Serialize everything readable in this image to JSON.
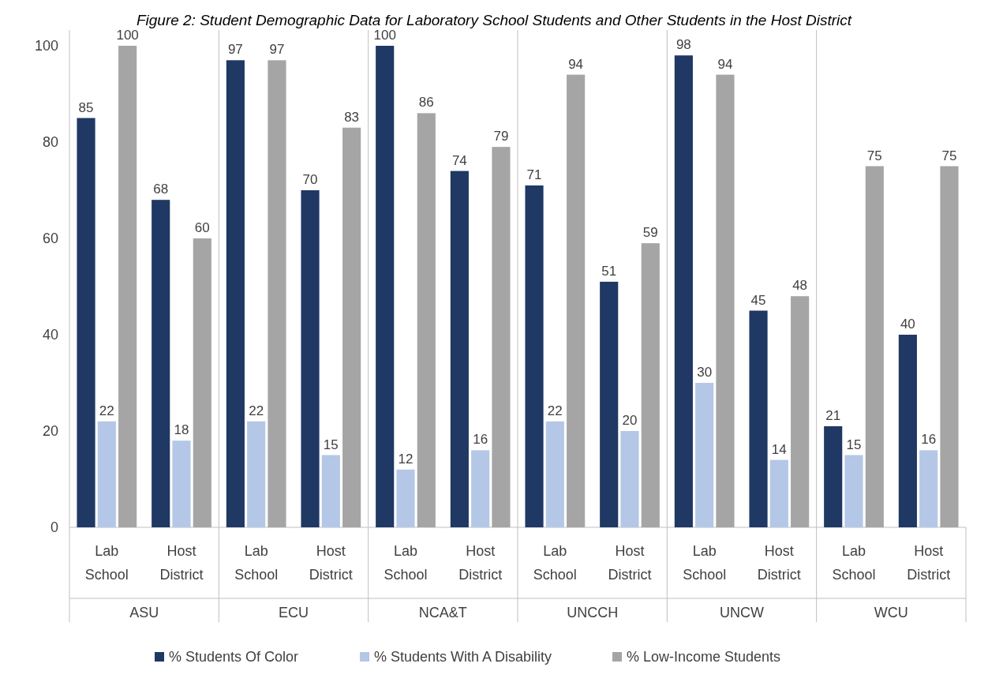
{
  "chart_data": {
    "type": "bar",
    "title": "Figure 2: Student Demographic Data for Laboratory School Students and Other Students in the Host District",
    "categories": [
      "Lab School",
      "Host District",
      "Lab School",
      "Host District",
      "Lab School",
      "Host District",
      "Lab School",
      "Host District",
      "Lab School",
      "Host District",
      "Lab School",
      "Host District"
    ],
    "annotations": [
      "ASU",
      "ECU",
      "NCA&T",
      "UNCCH",
      "UNCW",
      "WCU"
    ],
    "series": [
      {
        "name": "% Students Of Color",
        "color": "#1f3864",
        "values": [
          85,
          68,
          97,
          70,
          100,
          74,
          71,
          51,
          98,
          45,
          21,
          40
        ]
      },
      {
        "name": "% Students With A Disability",
        "color": "#b4c7e7",
        "values": [
          22,
          18,
          22,
          15,
          12,
          16,
          22,
          20,
          30,
          14,
          15,
          16
        ]
      },
      {
        "name": "% Low-Income Students",
        "color": "#a5a5a5",
        "values": [
          100,
          60,
          97,
          83,
          86,
          79,
          94,
          59,
          94,
          48,
          75,
          75
        ]
      }
    ],
    "ylim": [
      0,
      100
    ],
    "yticks": [
      0,
      20,
      40,
      60,
      80,
      100
    ],
    "data_labels": true,
    "legend": "bottom",
    "grid": false
  }
}
